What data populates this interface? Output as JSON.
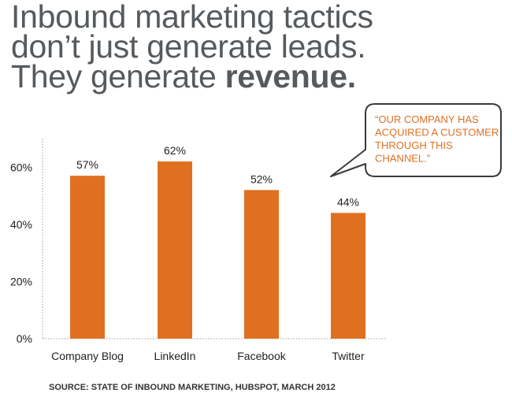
{
  "headline": {
    "line1": "Inbound marketing tactics",
    "line2": "don’t just generate leads.",
    "line3_prefix": "They generate ",
    "line3_bold": "revenue."
  },
  "callout": {
    "lines": [
      "“OUR COMPANY HAS",
      "ACQUIRED A CUSTOMER",
      "THROUGH THIS",
      "CHANNEL.”"
    ]
  },
  "source": "SOURCE: STATE OF INBOUND MARKETING, HUBSPOT, MARCH 2012",
  "colors": {
    "bar": "#e07020",
    "callout_text": "#e07020",
    "headline": "#555a5e"
  },
  "chart_data": {
    "type": "bar",
    "categories": [
      "Company Blog",
      "LinkedIn",
      "Facebook",
      "Twitter"
    ],
    "values": [
      57,
      62,
      52,
      44
    ],
    "data_labels": [
      "57%",
      "62%",
      "52%",
      "44%"
    ],
    "y_ticks": [
      0,
      20,
      40,
      60
    ],
    "y_tick_labels": [
      "0%",
      "20%",
      "40%",
      "60%"
    ],
    "ylim": [
      0,
      70
    ],
    "grid": false,
    "title": "",
    "xlabel": "",
    "ylabel": ""
  }
}
